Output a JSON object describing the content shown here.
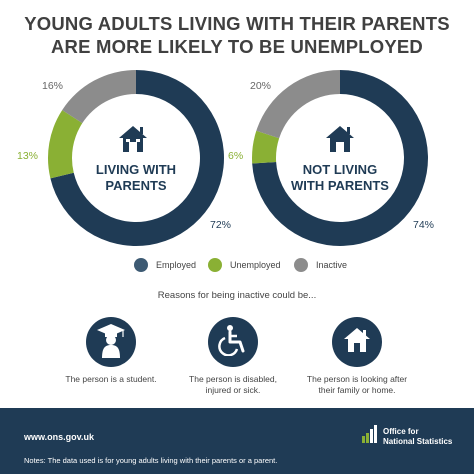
{
  "title": {
    "line1": "YOUNG ADULTS LIVING WITH THEIR PARENTS",
    "line2": "ARE MORE LIKELY TO BE UNEMPLOYED"
  },
  "colors": {
    "employed": "#1f3b55",
    "unemployed": "#8ab034",
    "inactive": "#8c8c8c",
    "footer": "#1f3b55"
  },
  "chart_data": [
    {
      "type": "pie",
      "center_label": [
        "LIVING WITH",
        "PARENTS"
      ],
      "center_icon": "house-icon",
      "categories": [
        "Employed",
        "Unemployed",
        "Inactive"
      ],
      "values": [
        72,
        13,
        16
      ],
      "labels": [
        "72%",
        "13%",
        "16%"
      ]
    },
    {
      "type": "pie",
      "center_label": [
        "NOT LIVING",
        "WITH PARENTS"
      ],
      "center_icon": "house-icon",
      "categories": [
        "Employed",
        "Unemployed",
        "Inactive"
      ],
      "values": [
        74,
        6,
        20
      ],
      "labels": [
        "74%",
        "6%",
        "20%"
      ]
    }
  ],
  "legend": [
    {
      "label": "Employed",
      "color": "#3d5a73"
    },
    {
      "label": "Unemployed",
      "color": "#8ab034"
    },
    {
      "label": "Inactive",
      "color": "#8c8c8c"
    }
  ],
  "reasons": {
    "title": "Reasons for being inactive could be...",
    "items": [
      {
        "icon": "student-icon",
        "lines": [
          "The person is a student."
        ]
      },
      {
        "icon": "wheelchair-icon",
        "lines": [
          "The person is disabled,",
          "injured or sick."
        ]
      },
      {
        "icon": "house-icon",
        "lines": [
          "The person is looking after",
          "their family or home."
        ]
      }
    ]
  },
  "footer": {
    "url": "www.ons.gov.uk",
    "note": "Notes: The data used is for young adults living with their parents or a parent.",
    "org_line1": "Office for",
    "org_line2": "National Statistics"
  }
}
